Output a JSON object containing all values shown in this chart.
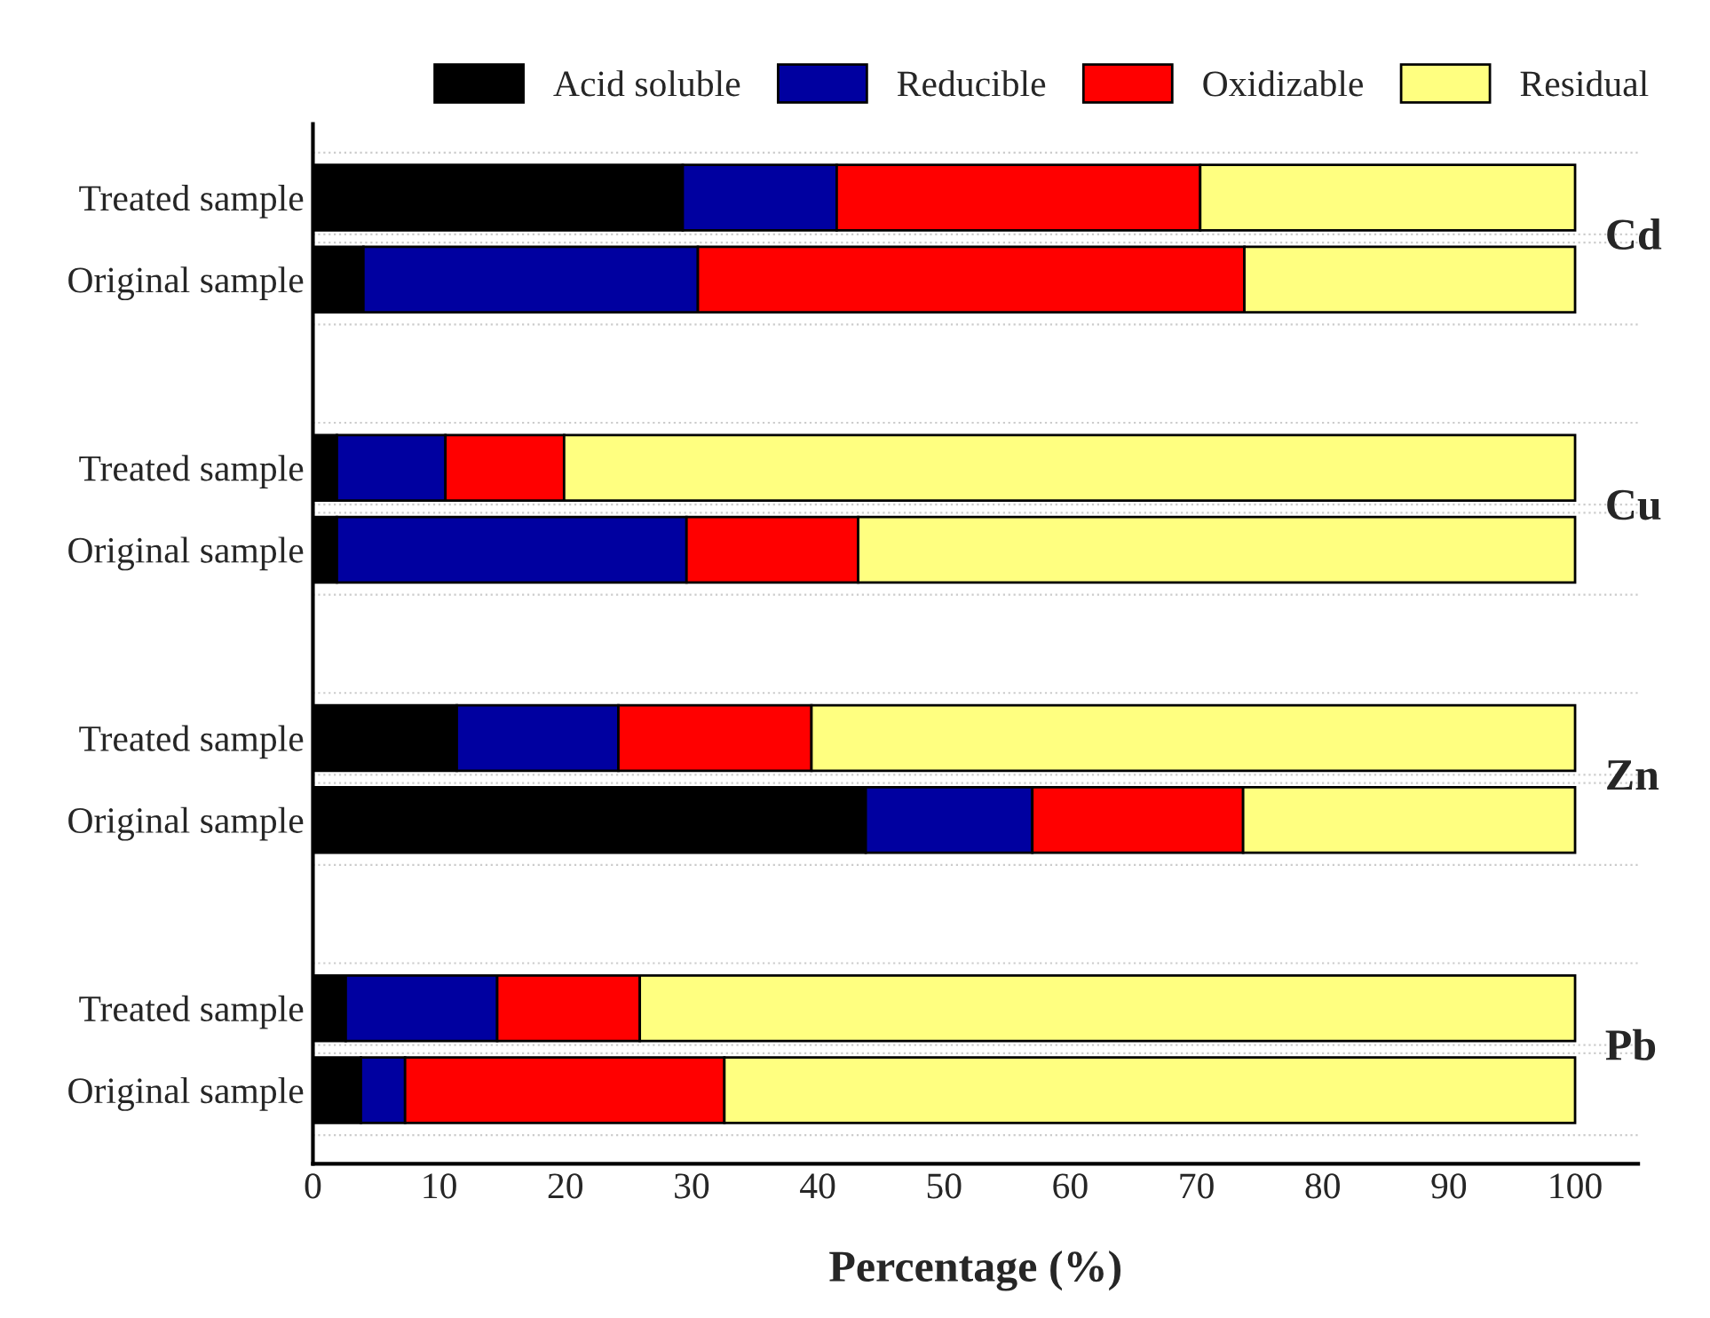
{
  "chart_data": {
    "type": "bar",
    "orientation": "horizontal",
    "stacked": true,
    "xlabel": "Percentage (%)",
    "categories": [
      "Treated sample",
      "Original sample",
      "Treated sample",
      "Original sample",
      "Treated sample",
      "Original sample",
      "Treated sample",
      "Original sample"
    ],
    "series": [
      {
        "name": "Acid soluble",
        "color": "#000000",
        "values": [
          29.3,
          4.0,
          1.9,
          1.9,
          11.4,
          43.8,
          2.6,
          3.8
        ]
      },
      {
        "name": "Reducible",
        "color": "#0000a0",
        "values": [
          12.2,
          26.5,
          8.6,
          27.7,
          12.8,
          13.2,
          12.0,
          3.5
        ]
      },
      {
        "name": "Oxidizable",
        "color": "#ff0000",
        "values": [
          28.8,
          43.3,
          9.4,
          13.6,
          15.3,
          16.7,
          11.3,
          25.3
        ]
      },
      {
        "name": "Residual",
        "color": "#ffff80",
        "values": [
          29.7,
          26.2,
          80.1,
          56.8,
          60.5,
          26.3,
          74.1,
          67.4
        ]
      }
    ],
    "annotations": [
      "Cd",
      "Cu",
      "Zn",
      "Pb"
    ],
    "xlim": [
      0,
      105
    ],
    "xticks": [
      0,
      10,
      20,
      30,
      40,
      50,
      60,
      70,
      80,
      90,
      100
    ],
    "grid": "y",
    "legend": "top"
  }
}
